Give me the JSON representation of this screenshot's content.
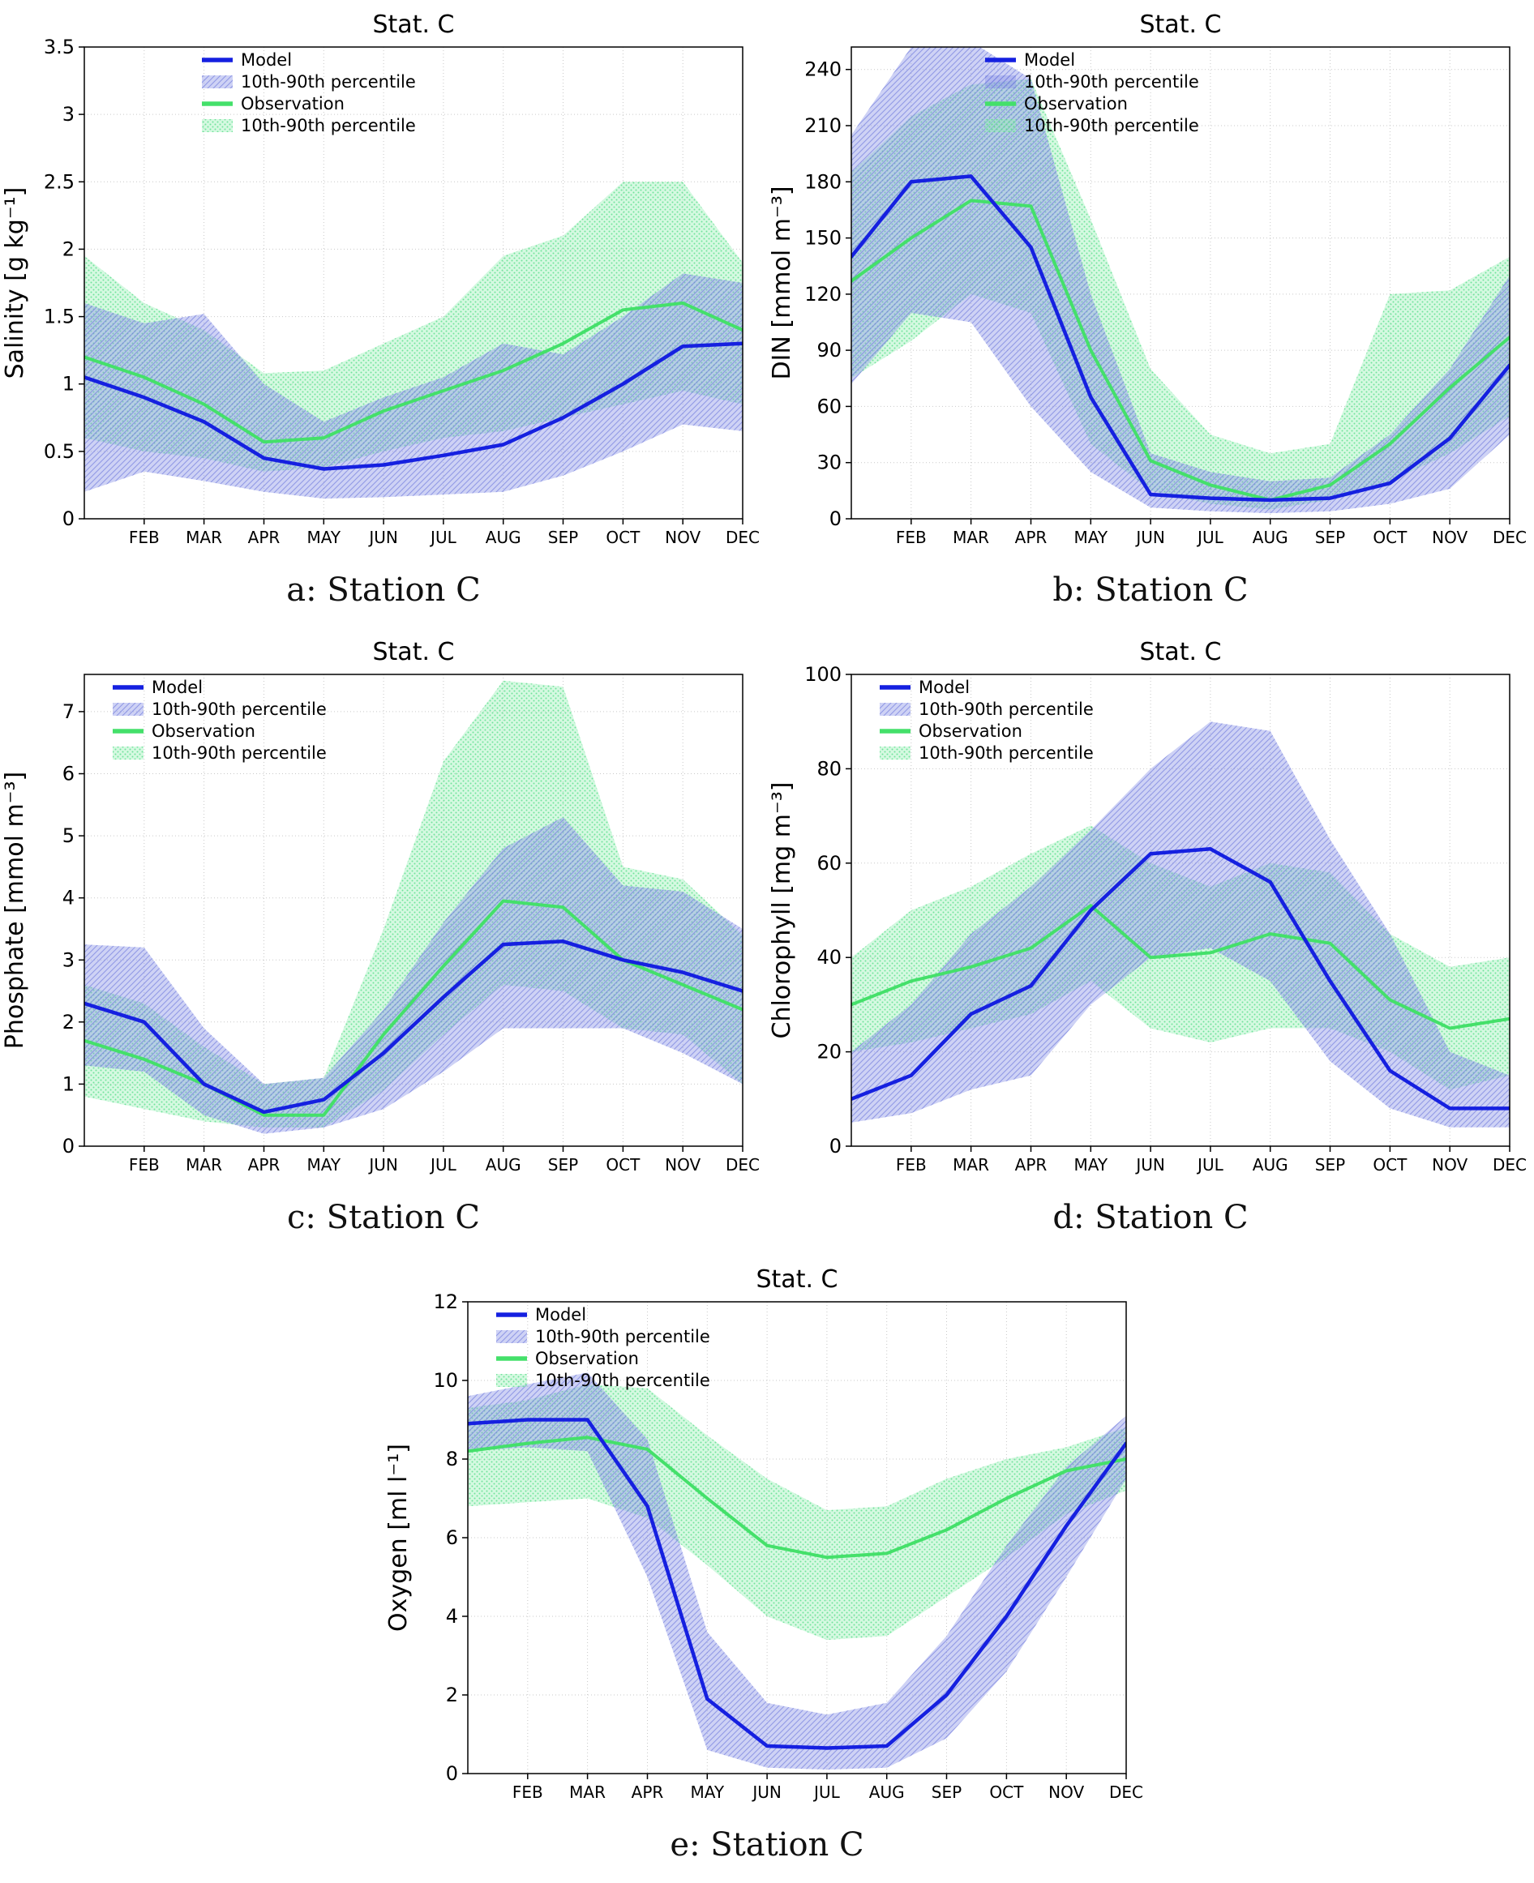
{
  "figure": {
    "station": "Stat. C",
    "legend": [
      "Model",
      "10th-90th percentile",
      "Observation",
      "10th-90th percentile"
    ],
    "colors": {
      "model_line": "#1520e0",
      "model_band": "#8a93e8",
      "model_band_line": "#7079dd",
      "obs_line": "#44e06a",
      "obs_band": "#90f0b0",
      "obs_band_dot": "#58dd8a",
      "grid": "#c9c9c9",
      "axis": "#000000"
    }
  },
  "chart_data": [
    {
      "type": "line",
      "title": "Stat. C",
      "caption": "a: Station C",
      "ylabel": "Salinity [g kg⁻¹]",
      "ylim": [
        0,
        3.5
      ],
      "yticks": [
        0,
        0.5,
        1,
        1.5,
        2,
        2.5,
        3,
        3.5
      ],
      "ytick_labels": [
        "0",
        "0.5",
        "1",
        "1.5",
        "2",
        "2.5",
        "3",
        "3.5"
      ],
      "x_tick_months": [
        2,
        3,
        4,
        5,
        6,
        7,
        8,
        9,
        10,
        11,
        12
      ],
      "x_tick_labels": [
        "FEB",
        "MAR",
        "APR",
        "MAY",
        "JUN",
        "JUL",
        "AUG",
        "SEP",
        "OCT",
        "NOV",
        "DEC"
      ],
      "grid": true,
      "legend_position": "upper-left",
      "legend_dx": 145,
      "series": [
        {
          "name": "Model",
          "role": "model-line",
          "values": [
            1.05,
            0.9,
            0.72,
            0.45,
            0.37,
            0.4,
            0.47,
            0.55,
            0.75,
            1.0,
            1.28,
            1.3
          ]
        },
        {
          "name": "Model 10th percentile",
          "role": "model-band-lower",
          "values": [
            0.2,
            0.35,
            0.28,
            0.2,
            0.15,
            0.16,
            0.18,
            0.2,
            0.32,
            0.5,
            0.7,
            0.65
          ]
        },
        {
          "name": "Model 90th percentile",
          "role": "model-band-upper",
          "values": [
            1.6,
            1.45,
            1.52,
            1.0,
            0.72,
            0.9,
            1.05,
            1.3,
            1.22,
            1.5,
            1.82,
            1.75
          ]
        },
        {
          "name": "Observation",
          "role": "obs-line",
          "values": [
            1.2,
            1.05,
            0.85,
            0.57,
            0.6,
            0.8,
            0.95,
            1.1,
            1.3,
            1.55,
            1.6,
            1.4
          ]
        },
        {
          "name": "Observation 10th percentile",
          "role": "obs-band-lower",
          "values": [
            0.6,
            0.5,
            0.45,
            0.35,
            0.38,
            0.5,
            0.6,
            0.65,
            0.75,
            0.85,
            0.95,
            0.85
          ]
        },
        {
          "name": "Observation 90th percentile",
          "role": "obs-band-upper",
          "values": [
            1.95,
            1.6,
            1.4,
            1.08,
            1.1,
            1.3,
            1.5,
            1.95,
            2.1,
            2.5,
            2.5,
            1.9
          ]
        }
      ]
    },
    {
      "type": "line",
      "title": "Stat. C",
      "caption": "b: Station C",
      "ylabel": "DIN [mmol m⁻³]",
      "ylim": [
        0,
        252
      ],
      "yticks": [
        0,
        30,
        60,
        90,
        120,
        150,
        180,
        210,
        240
      ],
      "ytick_labels": [
        "0",
        "30",
        "60",
        "90",
        "120",
        "150",
        "180",
        "210",
        "240"
      ],
      "x_tick_months": [
        2,
        3,
        4,
        5,
        6,
        7,
        8,
        9,
        10,
        11,
        12
      ],
      "x_tick_labels": [
        "FEB",
        "MAR",
        "APR",
        "MAY",
        "JUN",
        "JUL",
        "AUG",
        "SEP",
        "OCT",
        "NOV",
        "DEC"
      ],
      "grid": true,
      "legend_position": "upper-left",
      "legend_dx": 165,
      "series": [
        {
          "name": "Model",
          "role": "model-line",
          "values": [
            140,
            180,
            183,
            145,
            65,
            13,
            11,
            10,
            11,
            19,
            43,
            82
          ]
        },
        {
          "name": "Model 10th percentile",
          "role": "model-band-lower",
          "values": [
            72,
            110,
            105,
            60,
            25,
            6,
            4,
            3,
            4,
            8,
            16,
            45
          ]
        },
        {
          "name": "Model 90th percentile",
          "role": "model-band-upper",
          "values": [
            205,
            252,
            255,
            235,
            120,
            35,
            25,
            20,
            22,
            45,
            80,
            130
          ]
        },
        {
          "name": "Observation",
          "role": "obs-line",
          "values": [
            127,
            150,
            170,
            167,
            90,
            31,
            18,
            10,
            18,
            40,
            70,
            97
          ]
        },
        {
          "name": "Observation 10th percentile",
          "role": "obs-band-lower",
          "values": [
            75,
            95,
            120,
            110,
            40,
            15,
            8,
            5,
            10,
            20,
            35,
            55
          ]
        },
        {
          "name": "Observation 90th percentile",
          "role": "obs-band-upper",
          "values": [
            185,
            215,
            232,
            235,
            160,
            80,
            45,
            35,
            40,
            120,
            122,
            140
          ]
        }
      ]
    },
    {
      "type": "line",
      "title": "Stat. C",
      "caption": "c: Station C",
      "ylabel": "Phosphate [mmol m⁻³]",
      "ylim": [
        0,
        7.6
      ],
      "yticks": [
        0,
        1,
        2,
        3,
        4,
        5,
        6,
        7
      ],
      "ytick_labels": [
        "0",
        "1",
        "2",
        "3",
        "4",
        "5",
        "6",
        "7"
      ],
      "x_tick_months": [
        2,
        3,
        4,
        5,
        6,
        7,
        8,
        9,
        10,
        11,
        12
      ],
      "x_tick_labels": [
        "FEB",
        "MAR",
        "APR",
        "MAY",
        "JUN",
        "JUL",
        "AUG",
        "SEP",
        "OCT",
        "NOV",
        "DEC"
      ],
      "grid": true,
      "legend_position": "upper-left",
      "legend_dx": 35,
      "series": [
        {
          "name": "Model",
          "role": "model-line",
          "values": [
            2.3,
            2.0,
            1.0,
            0.55,
            0.75,
            1.5,
            2.4,
            3.25,
            3.3,
            3.0,
            2.8,
            2.5
          ]
        },
        {
          "name": "Model 10th percentile",
          "role": "model-band-lower",
          "values": [
            1.3,
            1.2,
            0.5,
            0.2,
            0.3,
            0.6,
            1.2,
            1.9,
            1.9,
            1.9,
            1.5,
            1.0
          ]
        },
        {
          "name": "Model 90th percentile",
          "role": "model-band-upper",
          "values": [
            3.25,
            3.2,
            1.9,
            1.0,
            1.1,
            2.2,
            3.6,
            4.8,
            5.3,
            4.2,
            4.1,
            3.5
          ]
        },
        {
          "name": "Observation",
          "role": "obs-line",
          "values": [
            1.7,
            1.4,
            1.0,
            0.5,
            0.5,
            1.8,
            2.9,
            3.95,
            3.85,
            3.0,
            2.6,
            2.2
          ]
        },
        {
          "name": "Observation 10th percentile",
          "role": "obs-band-lower",
          "values": [
            0.8,
            0.6,
            0.4,
            0.3,
            0.3,
            0.9,
            1.8,
            2.6,
            2.5,
            1.9,
            1.8,
            1.0
          ]
        },
        {
          "name": "Observation 90th percentile",
          "role": "obs-band-upper",
          "values": [
            2.6,
            2.3,
            1.6,
            1.0,
            1.1,
            3.5,
            6.2,
            7.5,
            7.4,
            4.5,
            4.3,
            3.4
          ]
        }
      ]
    },
    {
      "type": "line",
      "title": "Stat. C",
      "caption": "d: Station C",
      "ylabel": "Chlorophyll [mg m⁻³]",
      "ylim": [
        0,
        100
      ],
      "yticks": [
        0,
        20,
        40,
        60,
        80,
        100
      ],
      "ytick_labels": [
        "0",
        "20",
        "40",
        "60",
        "80",
        "100"
      ],
      "x_tick_months": [
        2,
        3,
        4,
        5,
        6,
        7,
        8,
        9,
        10,
        11,
        12
      ],
      "x_tick_labels": [
        "FEB",
        "MAR",
        "APR",
        "MAY",
        "JUN",
        "JUL",
        "AUG",
        "SEP",
        "OCT",
        "NOV",
        "DEC"
      ],
      "grid": true,
      "legend_position": "upper-left",
      "legend_dx": 35,
      "series": [
        {
          "name": "Model",
          "role": "model-line",
          "values": [
            10,
            15,
            28,
            34,
            50,
            62,
            63,
            56,
            35,
            16,
            8,
            8
          ]
        },
        {
          "name": "Model 10th percentile",
          "role": "model-band-lower",
          "values": [
            5,
            7,
            12,
            15,
            30,
            40,
            42,
            35,
            18,
            8,
            4,
            4
          ]
        },
        {
          "name": "Model 90th percentile",
          "role": "model-band-upper",
          "values": [
            20,
            30,
            45,
            55,
            67,
            80,
            90,
            88,
            65,
            45,
            20,
            15
          ]
        },
        {
          "name": "Observation",
          "role": "obs-line",
          "values": [
            30,
            35,
            38,
            42,
            51,
            40,
            41,
            45,
            43,
            31,
            25,
            27
          ]
        },
        {
          "name": "Observation 10th percentile",
          "role": "obs-band-lower",
          "values": [
            20,
            22,
            25,
            28,
            35,
            25,
            22,
            25,
            25,
            20,
            12,
            15
          ]
        },
        {
          "name": "Observation 90th percentile",
          "role": "obs-band-upper",
          "values": [
            40,
            50,
            55,
            62,
            68,
            60,
            55,
            60,
            58,
            45,
            38,
            40
          ]
        }
      ]
    },
    {
      "type": "line",
      "title": "Stat. C",
      "caption": "e: Station C",
      "ylabel": "Oxygen [ml l⁻¹]",
      "ylim": [
        0,
        12
      ],
      "yticks": [
        0,
        2,
        4,
        6,
        8,
        10,
        12
      ],
      "ytick_labels": [
        "0",
        "2",
        "4",
        "6",
        "8",
        "10",
        "12"
      ],
      "x_tick_months": [
        2,
        3,
        4,
        5,
        6,
        7,
        8,
        9,
        10,
        11,
        12
      ],
      "x_tick_labels": [
        "FEB",
        "MAR",
        "APR",
        "MAY",
        "JUN",
        "JUL",
        "AUG",
        "SEP",
        "OCT",
        "NOV",
        "DEC"
      ],
      "grid": true,
      "legend_position": "upper-left",
      "legend_dx": 35,
      "series": [
        {
          "name": "Model",
          "role": "model-line",
          "values": [
            8.9,
            9.0,
            9.0,
            6.8,
            1.9,
            0.7,
            0.65,
            0.7,
            2.0,
            4.0,
            6.3,
            8.4
          ]
        },
        {
          "name": "Model 10th percentile",
          "role": "model-band-lower",
          "values": [
            8.2,
            8.3,
            8.2,
            5.0,
            0.6,
            0.15,
            0.1,
            0.15,
            0.9,
            2.6,
            5.0,
            7.5
          ]
        },
        {
          "name": "Model 90th percentile",
          "role": "model-band-upper",
          "values": [
            9.6,
            9.9,
            10.2,
            8.5,
            3.6,
            1.8,
            1.5,
            1.8,
            3.5,
            5.8,
            7.8,
            9.1
          ]
        },
        {
          "name": "Observation",
          "role": "obs-line",
          "values": [
            8.2,
            8.4,
            8.55,
            8.25,
            7.0,
            5.8,
            5.5,
            5.6,
            6.2,
            7.0,
            7.7,
            8.0
          ]
        },
        {
          "name": "Observation 10th percentile",
          "role": "obs-band-lower",
          "values": [
            6.8,
            6.9,
            7.0,
            6.5,
            5.3,
            4.0,
            3.4,
            3.5,
            4.5,
            5.5,
            6.6,
            7.2
          ]
        },
        {
          "name": "Observation 90th percentile",
          "role": "obs-band-upper",
          "values": [
            9.3,
            9.5,
            9.9,
            9.8,
            8.6,
            7.5,
            6.7,
            6.8,
            7.5,
            8.0,
            8.3,
            8.8
          ]
        }
      ]
    }
  ]
}
